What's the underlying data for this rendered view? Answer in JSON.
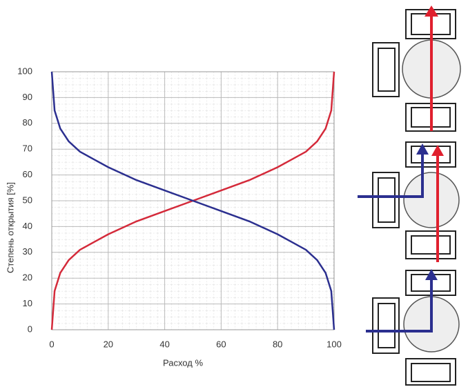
{
  "chart_data": {
    "type": "line",
    "x_label": "Расход %",
    "y_label": "Степень открытия [%]",
    "x": [
      0,
      1,
      3,
      6,
      10,
      15,
      20,
      30,
      40,
      50,
      60,
      70,
      80,
      85,
      90,
      94,
      97,
      99,
      100
    ],
    "series": [
      {
        "color": "#d42a3a",
        "values": [
          0,
          15,
          22,
          27,
          31,
          34,
          37,
          42,
          46,
          50,
          54,
          58,
          63,
          66,
          69,
          73,
          78,
          85,
          100
        ]
      },
      {
        "color": "#2b2f8f",
        "values": [
          100,
          85,
          78,
          73,
          69,
          66,
          63,
          58,
          54,
          50,
          46,
          42,
          37,
          34,
          31,
          27,
          22,
          15,
          0
        ]
      }
    ],
    "xlim": [
      0,
      100
    ],
    "xticks": [
      0,
      20,
      40,
      60,
      80,
      100
    ],
    "ylim": [
      0,
      100
    ],
    "yticks": [
      0,
      10,
      20,
      30,
      40,
      50,
      60,
      70,
      80,
      90,
      100
    ],
    "grid": true
  }
}
